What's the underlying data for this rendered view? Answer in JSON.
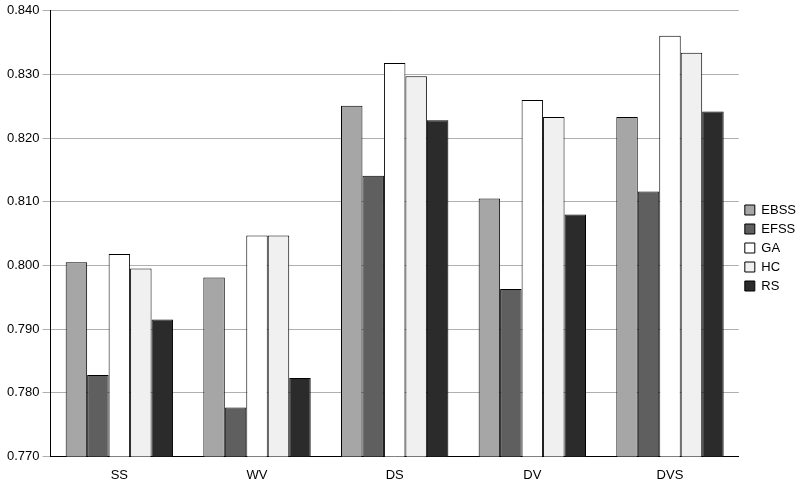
{
  "chart_data": {
    "type": "bar",
    "categories": [
      "SS",
      "WV",
      "DS",
      "DV",
      "DVS"
    ],
    "series": [
      {
        "name": "EBSS",
        "color": "#a6a6a6",
        "values": [
          0.8005,
          0.7981,
          0.8251,
          0.8105,
          0.8233
        ]
      },
      {
        "name": "EFSS",
        "color": "#5f5f5f",
        "values": [
          0.7828,
          0.7777,
          0.8141,
          0.7963,
          0.8116
        ]
      },
      {
        "name": "GA",
        "color": "#ffffff",
        "values": [
          0.8018,
          0.8047,
          0.8318,
          0.826,
          0.8361
        ]
      },
      {
        "name": "HC",
        "color": "#f0f0f0",
        "values": [
          0.7995,
          0.8047,
          0.8297,
          0.8233,
          0.8334
        ]
      },
      {
        "name": "RS",
        "color": "#2b2b2b",
        "values": [
          0.7915,
          0.7823,
          0.8228,
          0.808,
          0.8242
        ]
      }
    ],
    "ylim": [
      0.77,
      0.84
    ],
    "yticks": [
      {
        "value": 0.77,
        "label": "0.770"
      },
      {
        "value": 0.78,
        "label": "0.780"
      },
      {
        "value": 0.79,
        "label": "0.790"
      },
      {
        "value": 0.8,
        "label": "0.800"
      },
      {
        "value": 0.81,
        "label": "0.810"
      },
      {
        "value": 0.82,
        "label": "0.820"
      },
      {
        "value": 0.83,
        "label": "0.830"
      },
      {
        "value": 0.84,
        "label": "0.840"
      }
    ],
    "grid": true,
    "legend": "right"
  }
}
